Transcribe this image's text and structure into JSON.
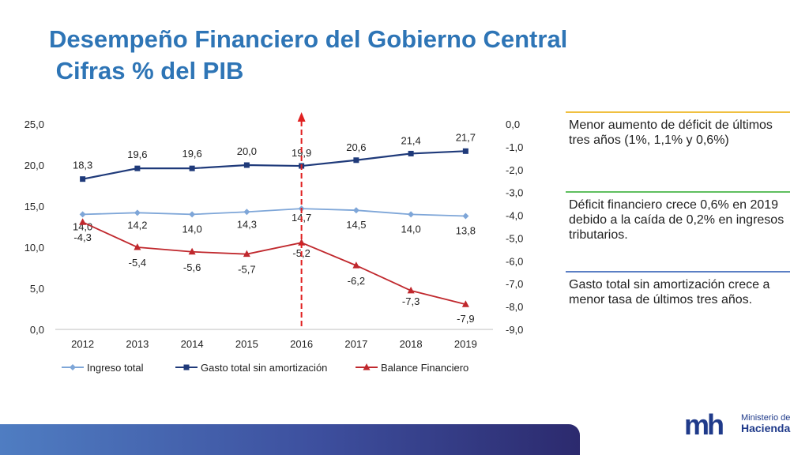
{
  "slide": {
    "title_line1": "Desempeño Financiero del Gobierno Central",
    "title_line2": " Cifras % del PIB"
  },
  "notes": [
    {
      "text": "Menor aumento de déficit de últimos tres años (1%, 1,1% y 0,6%)",
      "color": "#F0C040"
    },
    {
      "text": "Déficit financiero crece 0,6% en 2019 debido a la caída de 0,2% en ingresos tributarios.",
      "color": "#5FBF5F"
    },
    {
      "text": "Gasto total sin amortización crece a menor tasa de últimos tres años.",
      "color": "#5B7FC4"
    }
  ],
  "logo": {
    "mark": "mh",
    "line1": "Ministerio de",
    "line2": "Hacienda"
  },
  "chart_data": {
    "type": "line",
    "categories": [
      "2012",
      "2013",
      "2014",
      "2015",
      "2016",
      "2017",
      "2018",
      "2019"
    ],
    "series": [
      {
        "name": "Ingreso total",
        "axis": "left",
        "color": "#7EA6D8",
        "marker": "diamond",
        "values": [
          14.0,
          14.2,
          14.0,
          14.3,
          14.7,
          14.5,
          14.0,
          13.8
        ],
        "labels": [
          "14,0",
          "14,2",
          "14,0",
          "14,3",
          "14,7",
          "14,5",
          "14,0",
          "13,8"
        ]
      },
      {
        "name": "Gasto total sin amortización",
        "axis": "left",
        "color": "#1F3A7A",
        "marker": "square",
        "values": [
          18.3,
          19.6,
          19.6,
          20.0,
          19.9,
          20.6,
          21.4,
          21.7
        ],
        "labels": [
          "18,3",
          "19,6",
          "19,6",
          "20,0",
          "19,9",
          "20,6",
          "21,4",
          "21,7"
        ]
      },
      {
        "name": "Balance Financiero",
        "axis": "right",
        "color": "#C0282D",
        "marker": "triangle",
        "values": [
          -4.3,
          -5.4,
          -5.6,
          -5.7,
          -5.2,
          -6.2,
          -7.3,
          -7.9
        ],
        "labels": [
          "-4,3",
          "-5,4",
          "-5,6",
          "-5,7",
          "-5,2",
          "-6,2",
          "-7,3",
          "-7,9"
        ]
      }
    ],
    "y_left": {
      "min": 0,
      "max": 25,
      "ticks": [
        "0,0",
        "5,0",
        "10,0",
        "15,0",
        "20,0",
        "25,0"
      ]
    },
    "y_right": {
      "min": -9,
      "max": 0,
      "ticks": [
        "-9,0",
        "-8,0",
        "-7,0",
        "-6,0",
        "-5,0",
        "-4,0",
        "-3,0",
        "-2,0",
        "-1,0",
        "0,0"
      ]
    },
    "marker_line": {
      "category": "2016",
      "color": "#E02020",
      "style": "dashed-arrow"
    },
    "legend": "bottom",
    "grid": false
  }
}
